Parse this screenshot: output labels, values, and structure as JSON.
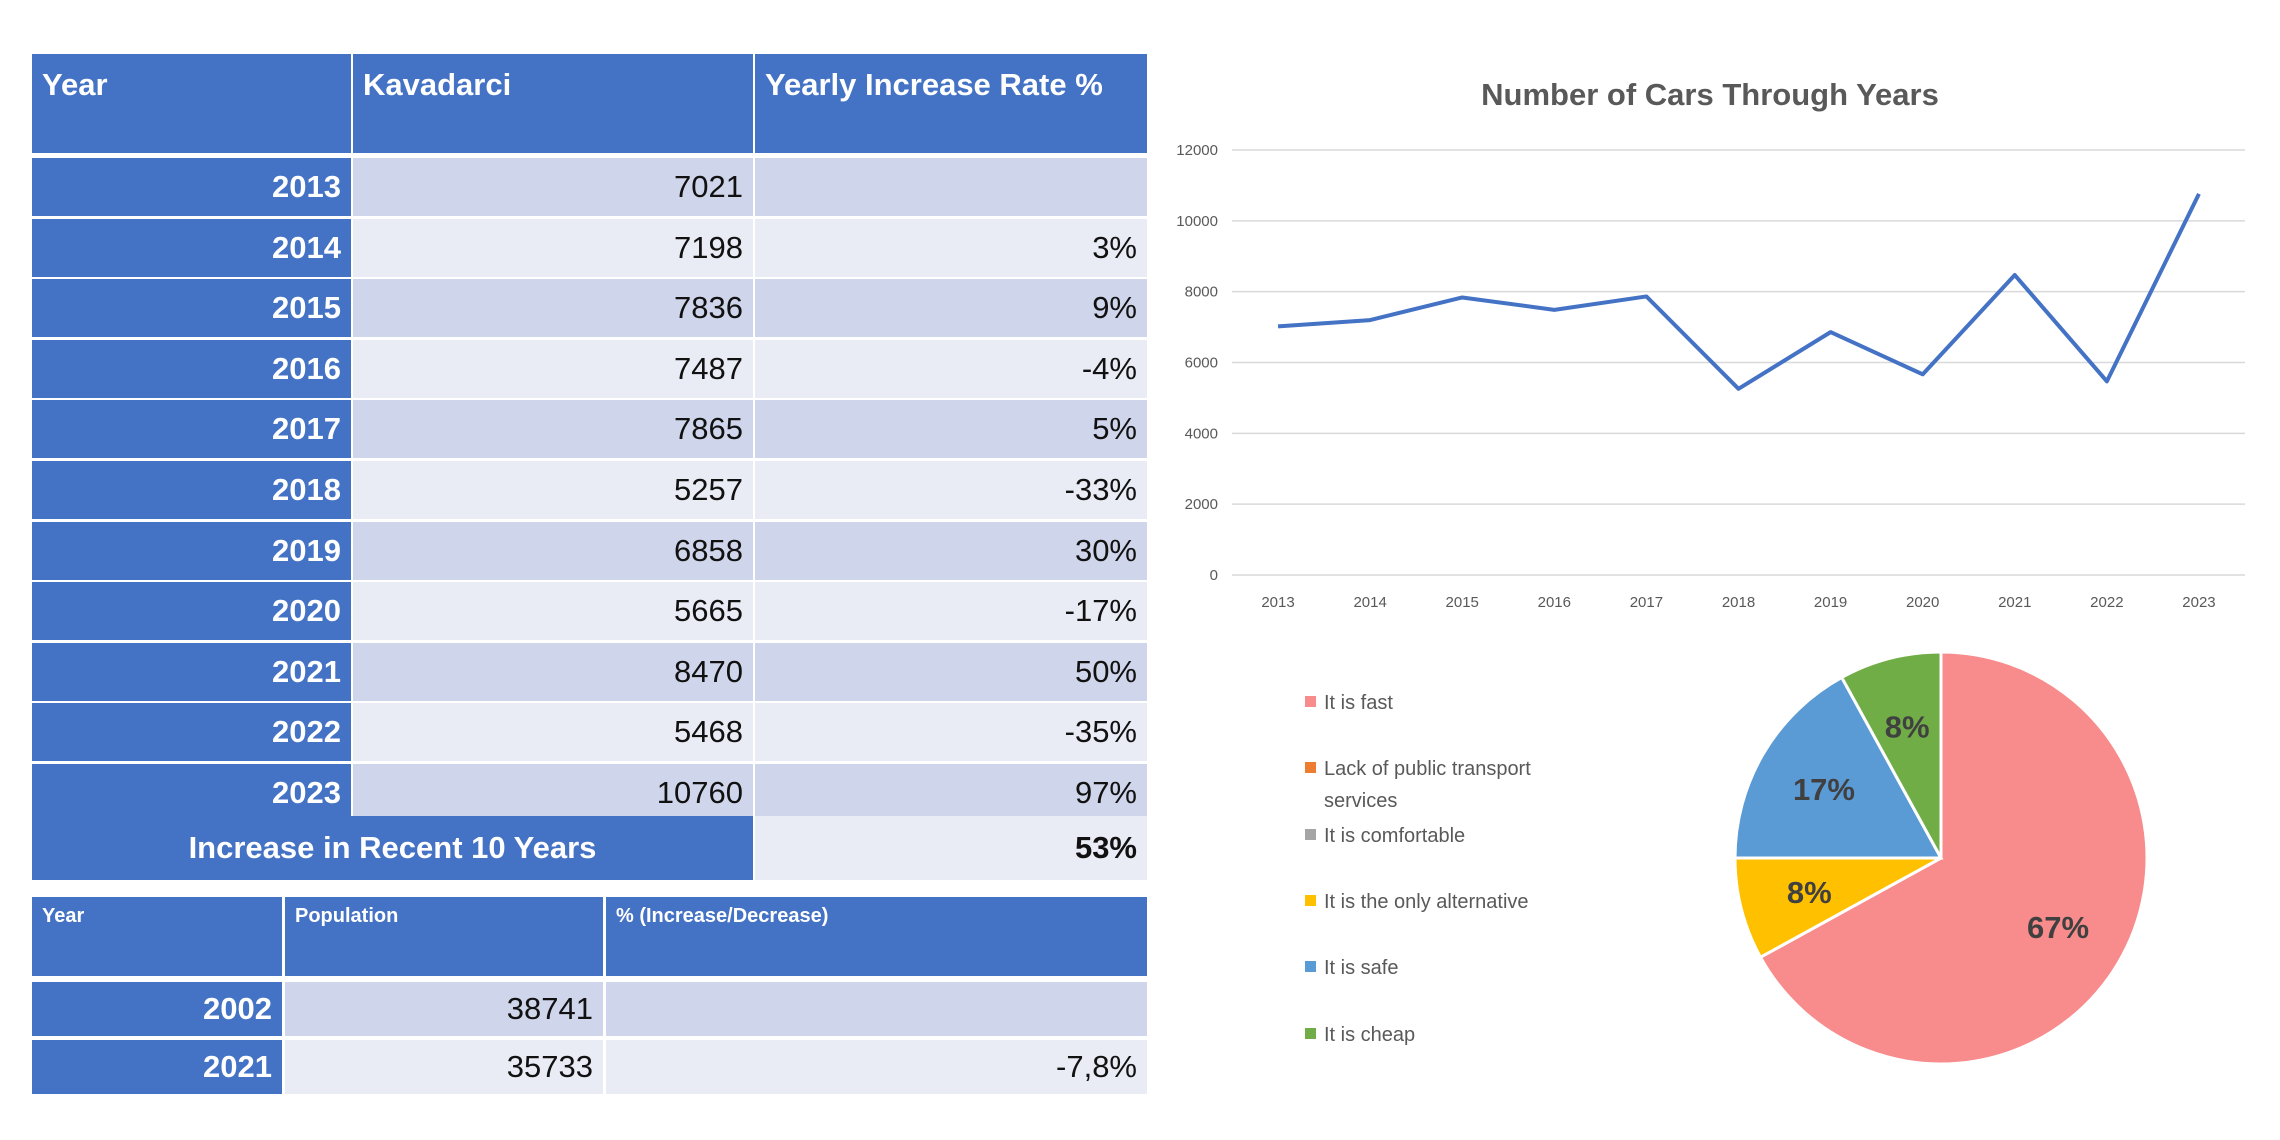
{
  "cars_table": {
    "headers": [
      "Year",
      "Kavadarci",
      "Yearly Increase Rate %"
    ],
    "rows": [
      {
        "year": "2013",
        "cars": "7021",
        "rate": ""
      },
      {
        "year": "2014",
        "cars": "7198",
        "rate": "3%"
      },
      {
        "year": "2015",
        "cars": "7836",
        "rate": "9%"
      },
      {
        "year": "2016",
        "cars": "7487",
        "rate": "-4%"
      },
      {
        "year": "2017",
        "cars": "7865",
        "rate": "5%"
      },
      {
        "year": "2018",
        "cars": "5257",
        "rate": "-33%"
      },
      {
        "year": "2019",
        "cars": "6858",
        "rate": "30%"
      },
      {
        "year": "2020",
        "cars": "5665",
        "rate": "-17%"
      },
      {
        "year": "2021",
        "cars": "8470",
        "rate": "50%"
      },
      {
        "year": "2022",
        "cars": "5468",
        "rate": "-35%"
      },
      {
        "year": "2023",
        "cars": "10760",
        "rate": "97%"
      }
    ],
    "summary_label": "Increase in Recent 10 Years",
    "summary_value": "53%"
  },
  "population_table": {
    "headers": [
      "Year",
      "Population",
      "% (Increase/Decrease)"
    ],
    "rows": [
      {
        "year": "2002",
        "population": "38741",
        "change": ""
      },
      {
        "year": "2021",
        "population": "35733",
        "change": "-7,8%"
      }
    ]
  },
  "colors": {
    "header": "#4472C4",
    "row_dark": "#CFD5EA",
    "row_light": "#E9EBF5"
  },
  "chart_data": [
    {
      "type": "line",
      "title": "Number of Cars Through Years",
      "categories": [
        "2013",
        "2014",
        "2015",
        "2016",
        "2017",
        "2018",
        "2019",
        "2020",
        "2021",
        "2022",
        "2023"
      ],
      "values": [
        7021,
        7198,
        7836,
        7487,
        7865,
        5257,
        6858,
        5665,
        8470,
        5468,
        10760
      ],
      "ylim": [
        0,
        12000
      ],
      "yticks": [
        "0",
        "2000",
        "4000",
        "6000",
        "8000",
        "10000",
        "12000"
      ],
      "grid": true,
      "color": "#4472C4"
    },
    {
      "type": "pie",
      "legend_position": "left",
      "slices": [
        {
          "label": "It is fast",
          "value": 67,
          "text": "67%",
          "color": "#F88B8B"
        },
        {
          "label": "Lack of public transport services",
          "value": 0,
          "text": "",
          "color": "#ED7D31"
        },
        {
          "label": "It is comfortable",
          "value": 0,
          "text": "",
          "color": "#A5A5A5"
        },
        {
          "label": "It is the only alternative",
          "value": 8,
          "text": "8%",
          "color": "#FFC000"
        },
        {
          "label": "It is safe",
          "value": 17,
          "text": "17%",
          "color": "#5B9BD5"
        },
        {
          "label": "It is cheap",
          "value": 8,
          "text": "8%",
          "color": "#70AD47"
        }
      ]
    }
  ]
}
